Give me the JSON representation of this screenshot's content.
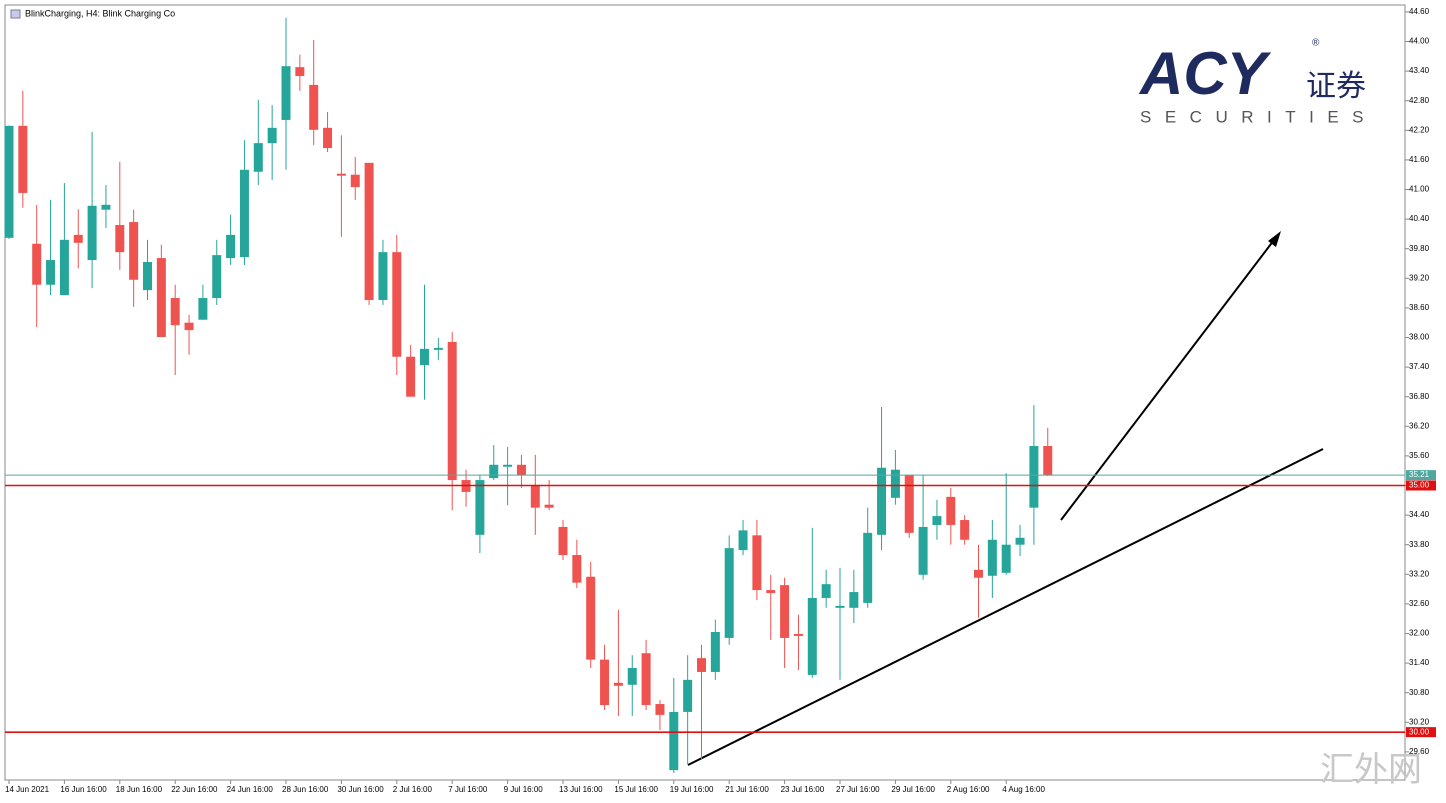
{
  "chart_data": {
    "type": "candlestick",
    "title": "BlinkCharging, H4:  Blink Charging Co",
    "logo": {
      "brand": "ACY",
      "trademark": "®",
      "chinese": "证券",
      "tagline": "SECURITIES"
    },
    "watermark": "汇外网",
    "up_color": "#26a69a",
    "down_color": "#ef5350",
    "categories": [
      "14 Jun 2021",
      null,
      null,
      null,
      "16 Jun 16:00",
      null,
      null,
      null,
      "18 Jun 16:00",
      null,
      null,
      null,
      "22 Jun 16:00",
      null,
      null,
      null,
      "24 Jun 16:00",
      null,
      null,
      null,
      "28 Jun 16:00",
      null,
      null,
      null,
      "30 Jun 16:00",
      null,
      null,
      null,
      "2 Jul 16:00",
      null,
      null,
      null,
      "7 Jul 16:00",
      null,
      null,
      null,
      "9 Jul 16:00",
      null,
      null,
      null,
      "13 Jul 16:00",
      null,
      null,
      null,
      "15 Jul 16:00",
      null,
      null,
      null,
      "19 Jul 16:00",
      null,
      null,
      null,
      "21 Jul 16:00",
      null,
      null,
      null,
      "23 Jul 16:00",
      null,
      null,
      null,
      "27 Jul 16:00",
      null,
      null,
      null,
      "29 Jul 16:00",
      null,
      null,
      null,
      "2 Aug 16:00",
      null,
      null,
      null,
      "4 Aug 16:00",
      null,
      null,
      null
    ],
    "open": [
      40.02,
      42.29,
      39.9,
      39.07,
      38.86,
      40.08,
      39.57,
      40.59,
      40.28,
      40.34,
      38.96,
      39.61,
      38.8,
      38.3,
      38.36,
      38.8,
      39.61,
      39.63,
      41.36,
      41.94,
      42.41,
      43.48,
      43.12,
      42.25,
      41.32,
      41.3,
      41.54,
      38.76,
      39.73,
      37.61,
      37.44,
      37.75,
      37.91,
      35.11,
      34.0,
      35.15,
      35.38,
      35.42,
      35.0,
      34.61,
      34.16,
      33.59,
      33.15,
      31.47,
      31.0,
      30.96,
      31.6,
      30.57,
      29.23,
      30.41,
      31.5,
      31.22,
      31.91,
      33.69,
      33.99,
      32.88,
      32.98,
      31.99,
      31.16,
      32.72,
      32.52,
      32.52,
      32.62,
      34.0,
      34.75,
      35.21,
      33.19,
      34.2,
      34.77,
      34.3,
      33.29,
      33.17,
      33.23,
      33.8,
      34.55,
      35.8
    ],
    "high": [
      42.3,
      43.0,
      40.69,
      40.79,
      41.13,
      40.6,
      42.17,
      41.09,
      41.56,
      40.59,
      39.98,
      39.88,
      39.07,
      38.46,
      39.07,
      39.98,
      40.49,
      42.0,
      42.82,
      42.71,
      44.48,
      43.73,
      44.03,
      42.57,
      42.1,
      41.66,
      41.54,
      39.98,
      40.08,
      37.85,
      39.07,
      37.99,
      38.11,
      35.32,
      35.21,
      35.82,
      35.78,
      35.62,
      35.62,
      35.11,
      34.3,
      33.9,
      33.45,
      31.77,
      32.48,
      31.56,
      31.87,
      30.65,
      31.1,
      31.56,
      31.77,
      32.28,
      33.99,
      34.3,
      34.3,
      33.19,
      33.13,
      32.38,
      34.14,
      33.29,
      33.33,
      33.29,
      34.55,
      36.59,
      35.72,
      35.21,
      35.21,
      34.71,
      34.95,
      34.4,
      33.8,
      34.3,
      35.25,
      34.2,
      36.63,
      36.17
    ],
    "low": [
      40.0,
      40.63,
      38.21,
      38.86,
      38.86,
      39.4,
      39.0,
      40.22,
      39.37,
      38.62,
      38.76,
      38.01,
      37.24,
      37.65,
      38.36,
      38.66,
      39.47,
      39.47,
      41.09,
      41.19,
      41.4,
      43.0,
      41.9,
      41.76,
      40.04,
      40.79,
      38.66,
      38.66,
      37.24,
      36.8,
      36.74,
      37.54,
      34.5,
      34.57,
      33.63,
      35.11,
      34.6,
      34.95,
      34.0,
      34.5,
      33.49,
      32.92,
      31.3,
      30.45,
      30.33,
      30.33,
      30.45,
      30.04,
      29.17,
      29.34,
      29.44,
      31.06,
      31.77,
      33.59,
      32.68,
      31.87,
      31.3,
      31.26,
      31.1,
      32.52,
      31.06,
      32.21,
      32.52,
      33.69,
      34.61,
      33.94,
      33.09,
      33.9,
      33.8,
      33.8,
      32.32,
      32.72,
      33.19,
      33.57,
      33.8,
      35.19
    ],
    "close": [
      42.29,
      40.93,
      39.07,
      39.57,
      39.98,
      39.92,
      40.67,
      40.69,
      39.73,
      39.17,
      39.53,
      38.01,
      38.25,
      38.15,
      38.8,
      39.67,
      40.08,
      41.4,
      41.94,
      42.25,
      43.5,
      43.3,
      42.21,
      41.84,
      41.28,
      41.05,
      38.76,
      39.73,
      37.61,
      36.8,
      37.77,
      37.79,
      35.11,
      34.87,
      35.11,
      35.42,
      35.42,
      35.21,
      34.55,
      34.55,
      33.59,
      33.03,
      31.47,
      30.55,
      30.94,
      31.3,
      30.55,
      30.35,
      30.41,
      31.06,
      31.22,
      32.03,
      33.73,
      34.09,
      32.88,
      32.82,
      31.91,
      31.95,
      32.72,
      33.0,
      32.56,
      32.84,
      34.04,
      35.36,
      35.32,
      34.04,
      34.16,
      34.38,
      34.2,
      33.9,
      33.13,
      33.9,
      33.8,
      33.94,
      35.8,
      35.21
    ],
    "ylim": [
      29.03,
      44.74
    ],
    "yticks": [
      {
        "value": 44.6,
        "label": "44.60"
      },
      {
        "value": 44.0,
        "label": "44.00"
      },
      {
        "value": 43.4,
        "label": "43.40"
      },
      {
        "value": 42.8,
        "label": "42.80"
      },
      {
        "value": 42.2,
        "label": "42.20"
      },
      {
        "value": 41.6,
        "label": "41.60"
      },
      {
        "value": 41.0,
        "label": "41.00"
      },
      {
        "value": 40.4,
        "label": "40.40"
      },
      {
        "value": 39.8,
        "label": "39.80"
      },
      {
        "value": 39.2,
        "label": "39.20"
      },
      {
        "value": 38.6,
        "label": "38.60"
      },
      {
        "value": 38.0,
        "label": "38.00"
      },
      {
        "value": 37.4,
        "label": "37.40"
      },
      {
        "value": 36.8,
        "label": "36.80"
      },
      {
        "value": 36.2,
        "label": "36.20"
      },
      {
        "value": 35.6,
        "label": "35.60"
      },
      {
        "value": 35.0,
        "label": "35.00"
      },
      {
        "value": 34.4,
        "label": "34.40"
      },
      {
        "value": 33.8,
        "label": "33.80"
      },
      {
        "value": 33.2,
        "label": "33.20"
      },
      {
        "value": 32.6,
        "label": "32.60"
      },
      {
        "value": 32.0,
        "label": "32.00"
      },
      {
        "value": 31.4,
        "label": "31.40"
      },
      {
        "value": 30.8,
        "label": "30.80"
      },
      {
        "value": 30.2,
        "label": "30.20"
      },
      {
        "value": 29.6,
        "label": "29.60"
      }
    ],
    "hlines": [
      {
        "value": 35.21,
        "label": "35.21",
        "color": "#4fa89f"
      },
      {
        "value": 35.0,
        "label": "35.00",
        "color": "#e01010"
      },
      {
        "value": 30.0,
        "label": "30.00",
        "color": "#e01010"
      }
    ]
  }
}
